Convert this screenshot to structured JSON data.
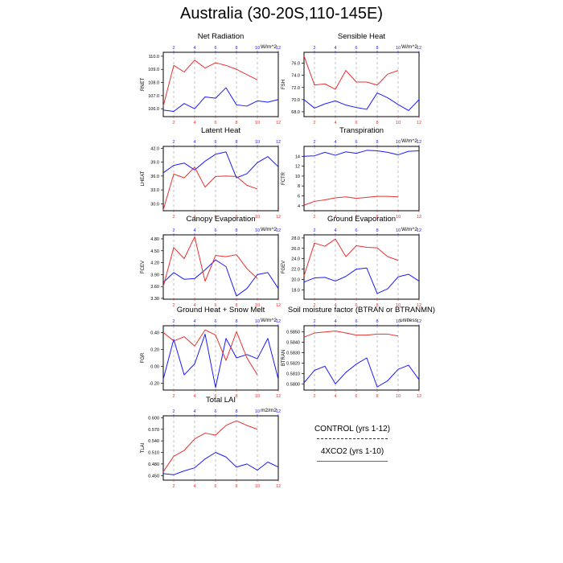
{
  "title": "Australia (30-20S,110-145E)",
  "legend": {
    "control": "CONTROL (yrs 1-12)",
    "xco2": "4XCO2 (yrs 1-10)"
  },
  "colors": {
    "control": "#1a1aff",
    "xco2": "#e83030",
    "axis": "#000000",
    "grid": "#999999"
  },
  "chart_data": [
    {
      "type": "line",
      "title": "Net Radiation",
      "ylabel": "RNET",
      "units": "W/m^2",
      "ylim": [
        105.4,
        110.3
      ],
      "yticks": [
        "106.0",
        "107.0",
        "108.0",
        "109.0",
        "110.0"
      ],
      "xlim": [
        1,
        12
      ],
      "series": [
        {
          "name": "CONTROL (yrs 1-12)",
          "x": [
            1,
            2,
            3,
            4,
            5,
            6,
            7,
            8,
            9,
            10,
            11,
            12
          ],
          "values": [
            105.9,
            105.8,
            106.4,
            106.0,
            106.9,
            106.8,
            107.6,
            106.3,
            106.2,
            106.6,
            106.5,
            106.7
          ]
        },
        {
          "name": "4XCO2 (yrs 1-10)",
          "x": [
            1,
            2,
            3,
            4,
            5,
            6,
            7,
            8,
            9,
            10
          ],
          "values": [
            106.2,
            109.3,
            108.8,
            109.7,
            109.1,
            109.5,
            109.3,
            109.0,
            108.6,
            108.2
          ]
        }
      ]
    },
    {
      "type": "line",
      "title": "Sensible Heat",
      "ylabel": "FSH",
      "units": "W/m^2",
      "ylim": [
        67.2,
        77.8
      ],
      "yticks": [
        "68.0",
        "70.0",
        "72.0",
        "74.0",
        "76.0"
      ],
      "xlim": [
        1,
        12
      ],
      "series": [
        {
          "name": "CONTROL (yrs 1-12)",
          "x": [
            1,
            2,
            3,
            4,
            5,
            6,
            7,
            8,
            9,
            10,
            11,
            12
          ],
          "values": [
            70.0,
            68.6,
            69.3,
            69.8,
            69.1,
            68.7,
            68.4,
            71.1,
            70.3,
            69.2,
            68.2,
            70.0
          ]
        },
        {
          "name": "4XCO2 (yrs 1-10)",
          "x": [
            1,
            2,
            3,
            4,
            5,
            6,
            7,
            8,
            9,
            10
          ],
          "values": [
            77.2,
            72.4,
            72.6,
            71.7,
            74.8,
            72.9,
            72.9,
            72.4,
            74.2,
            74.8
          ]
        }
      ]
    },
    {
      "type": "line",
      "title": "Latent Heat",
      "ylabel": "LHEAT",
      "units": "",
      "ylim": [
        28.5,
        42.4
      ],
      "yticks": [
        "30.0",
        "33.0",
        "36.0",
        "39.0",
        "42.0"
      ],
      "xlim": [
        1,
        12
      ],
      "series": [
        {
          "name": "CONTROL (yrs 1-12)",
          "x": [
            1,
            2,
            3,
            4,
            5,
            6,
            7,
            8,
            9,
            10,
            11,
            12
          ],
          "values": [
            36.7,
            38.3,
            38.8,
            37.3,
            39.2,
            40.7,
            41.2,
            35.6,
            36.5,
            38.9,
            40.2,
            38.0
          ]
        },
        {
          "name": "4XCO2 (yrs 1-10)",
          "x": [
            1,
            2,
            3,
            4,
            5,
            6,
            7,
            8,
            9,
            10
          ],
          "values": [
            28.7,
            36.4,
            35.6,
            37.9,
            33.6,
            35.9,
            36.0,
            35.9,
            34.0,
            33.2
          ]
        }
      ]
    },
    {
      "type": "line",
      "title": "Transpiration",
      "ylabel": "FCTR",
      "units": "W/m^2",
      "ylim": [
        3.0,
        16.0
      ],
      "yticks": [
        "4",
        "6",
        "8",
        "10",
        "12",
        "14"
      ],
      "xlim": [
        1,
        12
      ],
      "series": [
        {
          "name": "CONTROL (yrs 1-12)",
          "x": [
            1,
            2,
            3,
            4,
            5,
            6,
            7,
            8,
            9,
            10,
            11,
            12
          ],
          "values": [
            14.0,
            14.1,
            14.8,
            14.2,
            14.9,
            14.6,
            15.2,
            15.1,
            14.8,
            14.3,
            15.0,
            15.1
          ]
        },
        {
          "name": "4XCO2 (yrs 1-10)",
          "x": [
            1,
            2,
            3,
            4,
            5,
            6,
            7,
            8,
            9,
            10
          ],
          "values": [
            4.1,
            4.9,
            5.2,
            5.6,
            5.8,
            5.5,
            5.7,
            5.9,
            5.9,
            5.8
          ]
        }
      ]
    },
    {
      "type": "line",
      "title": "Canopy Evaporation",
      "ylabel": "FCEV",
      "units": "W/m^2",
      "ylim": [
        3.28,
        4.9
      ],
      "yticks": [
        "3.30",
        "3.60",
        "3.90",
        "4.20",
        "4.50",
        "4.80"
      ],
      "xlim": [
        1,
        12
      ],
      "series": [
        {
          "name": "CONTROL (yrs 1-12)",
          "x": [
            1,
            2,
            3,
            4,
            5,
            6,
            7,
            8,
            9,
            10,
            11,
            12
          ],
          "values": [
            3.7,
            3.95,
            3.78,
            3.8,
            4.02,
            4.27,
            4.1,
            3.36,
            3.55,
            3.9,
            3.95,
            3.55
          ]
        },
        {
          "name": "4XCO2 (yrs 1-10)",
          "x": [
            1,
            2,
            3,
            4,
            5,
            6,
            7,
            8,
            9,
            10
          ],
          "values": [
            3.6,
            4.58,
            4.3,
            4.85,
            3.73,
            4.38,
            4.35,
            4.4,
            4.05,
            3.8
          ]
        }
      ]
    },
    {
      "type": "line",
      "title": "Ground Evaporation",
      "ylabel": "FGEV",
      "units": "W/m^2",
      "ylim": [
        16.2,
        28.6
      ],
      "yticks": [
        "18.0",
        "20.0",
        "22.0",
        "24.0",
        "26.0",
        "28.0"
      ],
      "xlim": [
        1,
        12
      ],
      "series": [
        {
          "name": "CONTROL (yrs 1-12)",
          "x": [
            1,
            2,
            3,
            4,
            5,
            6,
            7,
            8,
            9,
            10,
            11,
            12
          ],
          "values": [
            19.5,
            20.3,
            20.4,
            19.7,
            20.6,
            22.0,
            22.2,
            17.3,
            18.2,
            20.5,
            21.0,
            19.7
          ]
        },
        {
          "name": "4XCO2 (yrs 1-10)",
          "x": [
            1,
            2,
            3,
            4,
            5,
            6,
            7,
            8,
            9,
            10
          ],
          "values": [
            20.7,
            27.0,
            26.4,
            27.8,
            24.4,
            26.5,
            26.2,
            26.1,
            24.4,
            23.7
          ]
        }
      ]
    },
    {
      "type": "line",
      "title": "Ground Heat + Snow Melt",
      "ylabel": "FGR",
      "units": "W/m^2",
      "ylim": [
        -0.28,
        0.48
      ],
      "yticks": [
        "-0.20",
        "0.00",
        "0.20",
        "0.40"
      ],
      "xlim": [
        1,
        12
      ],
      "series": [
        {
          "name": "CONTROL (yrs 1-12)",
          "x": [
            1,
            2,
            3,
            4,
            5,
            6,
            7,
            8,
            9,
            10,
            11,
            12
          ],
          "values": [
            -0.15,
            0.32,
            -0.1,
            0.03,
            0.38,
            -0.25,
            0.33,
            0.1,
            0.14,
            0.09,
            0.33,
            -0.15
          ]
        },
        {
          "name": "4XCO2 (yrs 1-10)",
          "x": [
            1,
            2,
            3,
            4,
            5,
            6,
            7,
            8,
            9,
            10
          ],
          "values": [
            0.4,
            0.3,
            0.35,
            0.24,
            0.43,
            0.37,
            0.07,
            0.41,
            0.1,
            -0.1
          ]
        }
      ]
    },
    {
      "type": "line",
      "title": "Soil moisture factor (BTRAN or BTRANMN)",
      "ylabel": "BTRAN",
      "units": "unitless",
      "ylim": [
        0.5794,
        0.5856
      ],
      "yticks": [
        "0.5800",
        "0.5810",
        "0.5820",
        "0.5830",
        "0.5840",
        "0.5850"
      ],
      "xlim": [
        1,
        12
      ],
      "series": [
        {
          "name": "CONTROL (yrs 1-12)",
          "x": [
            1,
            2,
            3,
            4,
            5,
            6,
            7,
            8,
            9,
            10,
            11,
            12
          ],
          "values": [
            0.5801,
            0.5813,
            0.5817,
            0.58,
            0.5811,
            0.5819,
            0.5825,
            0.5797,
            0.5803,
            0.5814,
            0.5818,
            0.5804
          ]
        },
        {
          "name": "4XCO2 (yrs 1-10)",
          "x": [
            1,
            2,
            3,
            4,
            5,
            6,
            7,
            8,
            9,
            10
          ],
          "values": [
            0.5845,
            0.5849,
            0.585,
            0.5851,
            0.5849,
            0.5847,
            0.5847,
            0.5848,
            0.5848,
            0.5846
          ]
        }
      ]
    },
    {
      "type": "line",
      "title": "Total LAI",
      "ylabel": "TLAI",
      "units": "m2/m2",
      "ylim": [
        0.438,
        0.605
      ],
      "yticks": [
        "0.450",
        "0.480",
        "0.510",
        "0.540",
        "0.570",
        "0.600"
      ],
      "xlim": [
        1,
        12
      ],
      "series": [
        {
          "name": "CONTROL (yrs 1-12)",
          "x": [
            1,
            2,
            3,
            4,
            5,
            6,
            7,
            8,
            9,
            10,
            11,
            12
          ],
          "values": [
            0.455,
            0.452,
            0.462,
            0.47,
            0.493,
            0.51,
            0.498,
            0.472,
            0.48,
            0.464,
            0.485,
            0.472
          ]
        },
        {
          "name": "4XCO2 (yrs 1-10)",
          "x": [
            1,
            2,
            3,
            4,
            5,
            6,
            7,
            8,
            9,
            10
          ],
          "values": [
            0.46,
            0.5,
            0.515,
            0.545,
            0.56,
            0.555,
            0.58,
            0.592,
            0.58,
            0.57
          ]
        }
      ]
    }
  ],
  "xaxis": {
    "top_ticks": [
      "2",
      "4",
      "6",
      "8",
      "10",
      "12"
    ],
    "bottom_ticks": [
      "2",
      "4",
      "6",
      "8",
      "10",
      "12"
    ]
  }
}
